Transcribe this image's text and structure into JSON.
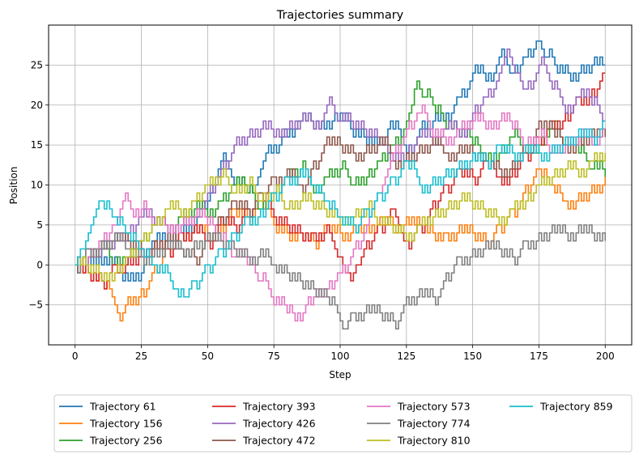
{
  "chart_data": {
    "type": "line",
    "title": "Trajectories summary",
    "xlabel": "Step",
    "ylabel": "Position",
    "xlim": [
      -10,
      210
    ],
    "ylim": [
      -10,
      30
    ],
    "xticks": [
      0,
      25,
      50,
      75,
      100,
      125,
      150,
      175,
      200
    ],
    "yticks": [
      -5,
      0,
      5,
      10,
      15,
      20,
      25
    ],
    "ytick_labels": [
      "−5",
      "0",
      "5",
      "10",
      "15",
      "20",
      "25"
    ],
    "grid": true,
    "legend_position": "bottom",
    "legend_columns": 4,
    "step_style": "steps",
    "series": [
      {
        "name": "Trajectory 61",
        "color": "#1f77b4",
        "x": [
          0,
          10,
          18,
          25,
          30,
          40,
          47,
          52,
          55,
          60,
          65,
          72,
          78,
          85,
          90,
          97,
          105,
          110,
          118,
          125,
          130,
          135,
          142,
          145,
          150,
          155,
          160,
          165,
          170,
          175,
          178,
          182,
          187,
          190,
          195,
          200
        ],
        "y": [
          0,
          0,
          -2,
          -1,
          3,
          4,
          7,
          10,
          13,
          10,
          9,
          14,
          16,
          18,
          17,
          18,
          16,
          15,
          17,
          14,
          17,
          18,
          19,
          21,
          24,
          23,
          26,
          24,
          26,
          28,
          26,
          24,
          23,
          24,
          25,
          25
        ]
      },
      {
        "name": "Trajectory 156",
        "color": "#ff7f0e",
        "x": [
          0,
          5,
          10,
          16,
          20,
          25,
          30,
          35,
          40,
          45,
          50,
          55,
          60,
          65,
          70,
          75,
          80,
          85,
          90,
          95,
          100,
          105,
          110,
          115,
          120,
          125,
          130,
          135,
          140,
          145,
          150,
          155,
          160,
          165,
          170,
          175,
          180,
          185,
          190,
          195,
          200
        ],
        "y": [
          0,
          -1,
          -2,
          -6,
          -4,
          -3,
          0,
          2,
          4,
          5,
          4,
          5,
          7,
          6,
          8,
          5,
          4,
          4,
          3,
          5,
          4,
          5,
          5,
          6,
          5,
          6,
          5,
          4,
          4,
          5,
          4,
          3,
          5,
          7,
          10,
          12,
          10,
          8,
          9,
          10,
          11
        ]
      },
      {
        "name": "Trajectory 256",
        "color": "#2ca02c",
        "x": [
          0,
          5,
          10,
          15,
          20,
          25,
          30,
          35,
          40,
          45,
          50,
          55,
          60,
          65,
          70,
          75,
          80,
          85,
          90,
          95,
          100,
          105,
          110,
          115,
          120,
          125,
          128,
          132,
          136,
          140,
          145,
          150,
          155,
          160,
          165,
          170,
          175,
          180,
          185,
          190,
          195,
          200
        ],
        "y": [
          0,
          1,
          2,
          0,
          1,
          3,
          5,
          4,
          6,
          7,
          6,
          8,
          10,
          9,
          7,
          9,
          11,
          12,
          9,
          11,
          12,
          10,
          11,
          13,
          15,
          18,
          22,
          21,
          19,
          17,
          16,
          15,
          13,
          14,
          16,
          14,
          15,
          17,
          15,
          14,
          12,
          11
        ]
      },
      {
        "name": "Trajectory 393",
        "color": "#d62728",
        "x": [
          0,
          5,
          10,
          15,
          20,
          25,
          30,
          35,
          40,
          45,
          50,
          55,
          60,
          65,
          70,
          75,
          80,
          85,
          90,
          95,
          100,
          103,
          107,
          110,
          115,
          120,
          125,
          130,
          135,
          140,
          145,
          150,
          155,
          160,
          165,
          170,
          175,
          180,
          185,
          190,
          195,
          200
        ],
        "y": [
          0,
          -1,
          -2,
          0,
          1,
          2,
          3,
          2,
          4,
          5,
          3,
          6,
          5,
          7,
          9,
          6,
          5,
          4,
          4,
          5,
          1,
          -1,
          0,
          3,
          5,
          7,
          3,
          5,
          8,
          10,
          12,
          11,
          13,
          11,
          12,
          14,
          16,
          18,
          19,
          21,
          22,
          24
        ]
      },
      {
        "name": "Trajectory 426",
        "color": "#9467bd",
        "x": [
          0,
          5,
          10,
          15,
          20,
          25,
          30,
          35,
          40,
          45,
          50,
          55,
          60,
          65,
          70,
          75,
          80,
          85,
          90,
          95,
          100,
          105,
          110,
          115,
          120,
          125,
          130,
          135,
          140,
          145,
          150,
          155,
          160,
          163,
          167,
          170,
          175,
          180,
          185,
          190,
          195,
          200
        ],
        "y": [
          0,
          1,
          2,
          3,
          4,
          6,
          5,
          4,
          5,
          6,
          9,
          12,
          15,
          16,
          17,
          16,
          17,
          18,
          17,
          20,
          18,
          17,
          16,
          15,
          13,
          14,
          16,
          15,
          17,
          16,
          19,
          21,
          24,
          27,
          24,
          22,
          25,
          22,
          19,
          21,
          20,
          18
        ]
      },
      {
        "name": "Trajectory 472",
        "color": "#8c564b",
        "x": [
          0,
          5,
          10,
          15,
          20,
          25,
          30,
          35,
          40,
          45,
          50,
          55,
          60,
          65,
          70,
          75,
          80,
          85,
          90,
          95,
          100,
          105,
          110,
          115,
          120,
          125,
          130,
          135,
          140,
          145,
          150,
          155,
          160,
          165,
          170,
          175,
          180,
          185,
          190,
          195,
          200
        ],
        "y": [
          0,
          2,
          3,
          4,
          3,
          2,
          3,
          4,
          2,
          1,
          4,
          6,
          8,
          7,
          9,
          11,
          12,
          10,
          13,
          16,
          15,
          14,
          15,
          16,
          13,
          14,
          15,
          16,
          14,
          15,
          14,
          13,
          12,
          13,
          15,
          18,
          17,
          15,
          16,
          17,
          16
        ]
      },
      {
        "name": "Trajectory 573",
        "color": "#e377c2",
        "x": [
          0,
          5,
          10,
          15,
          18,
          22,
          25,
          30,
          35,
          40,
          45,
          50,
          55,
          60,
          65,
          70,
          75,
          80,
          83,
          87,
          90,
          95,
          100,
          105,
          110,
          115,
          120,
          125,
          130,
          135,
          140,
          145,
          150,
          155,
          160,
          165,
          170,
          175,
          180,
          185,
          190,
          195,
          200
        ],
        "y": [
          0,
          1,
          3,
          5,
          8,
          6,
          7,
          5,
          4,
          5,
          6,
          5,
          3,
          1,
          0,
          -2,
          -5,
          -6,
          -7,
          -5,
          -4,
          -3,
          -1,
          2,
          5,
          9,
          14,
          17,
          19,
          16,
          15,
          17,
          18,
          17,
          18,
          17,
          15,
          16,
          14,
          15,
          16,
          15,
          17
        ]
      },
      {
        "name": "Trajectory 774",
        "color": "#7f7f7f",
        "x": [
          0,
          5,
          10,
          15,
          20,
          25,
          30,
          35,
          40,
          45,
          50,
          55,
          60,
          65,
          70,
          75,
          80,
          85,
          90,
          95,
          100,
          102,
          105,
          110,
          115,
          120,
          125,
          130,
          135,
          140,
          145,
          150,
          155,
          160,
          165,
          170,
          175,
          180,
          185,
          190,
          195,
          200
        ],
        "y": [
          0,
          2,
          3,
          4,
          2,
          1,
          2,
          3,
          2,
          3,
          4,
          3,
          2,
          1,
          2,
          0,
          -1,
          -2,
          -3,
          -4,
          -7,
          -8,
          -6,
          -5,
          -6,
          -7,
          -4,
          -3,
          -4,
          -1,
          1,
          2,
          3,
          2,
          1,
          3,
          4,
          5,
          4,
          5,
          4,
          3
        ]
      },
      {
        "name": "Trajectory 810",
        "color": "#bcbd22",
        "x": [
          0,
          5,
          10,
          15,
          20,
          25,
          30,
          35,
          40,
          45,
          50,
          55,
          60,
          65,
          70,
          75,
          80,
          85,
          90,
          95,
          100,
          105,
          110,
          115,
          120,
          125,
          130,
          135,
          140,
          145,
          150,
          155,
          160,
          165,
          170,
          175,
          180,
          185,
          190,
          195,
          200
        ],
        "y": [
          0,
          -1,
          -2,
          -1,
          1,
          3,
          5,
          7,
          6,
          8,
          10,
          11,
          9,
          10,
          8,
          9,
          7,
          8,
          7,
          6,
          5,
          6,
          7,
          5,
          4,
          3,
          5,
          6,
          7,
          8,
          7,
          6,
          5,
          7,
          8,
          10,
          11,
          12,
          11,
          13,
          14
        ]
      },
      {
        "name": "Trajectory 859",
        "color": "#17becf",
        "x": [
          0,
          3,
          6,
          10,
          15,
          20,
          25,
          30,
          35,
          38,
          42,
          45,
          50,
          55,
          60,
          65,
          70,
          75,
          80,
          85,
          90,
          95,
          100,
          105,
          110,
          115,
          120,
          125,
          130,
          135,
          140,
          145,
          150,
          155,
          160,
          165,
          170,
          175,
          180,
          185,
          190,
          195,
          200
        ],
        "y": [
          0,
          2,
          5,
          8,
          6,
          4,
          2,
          0,
          -1,
          -3,
          -4,
          -2,
          0,
          2,
          4,
          6,
          7,
          9,
          11,
          12,
          10,
          8,
          6,
          5,
          7,
          9,
          11,
          13,
          10,
          11,
          12,
          13,
          14,
          13,
          15,
          14,
          15,
          14,
          15,
          16,
          17,
          16,
          18
        ]
      }
    ]
  }
}
